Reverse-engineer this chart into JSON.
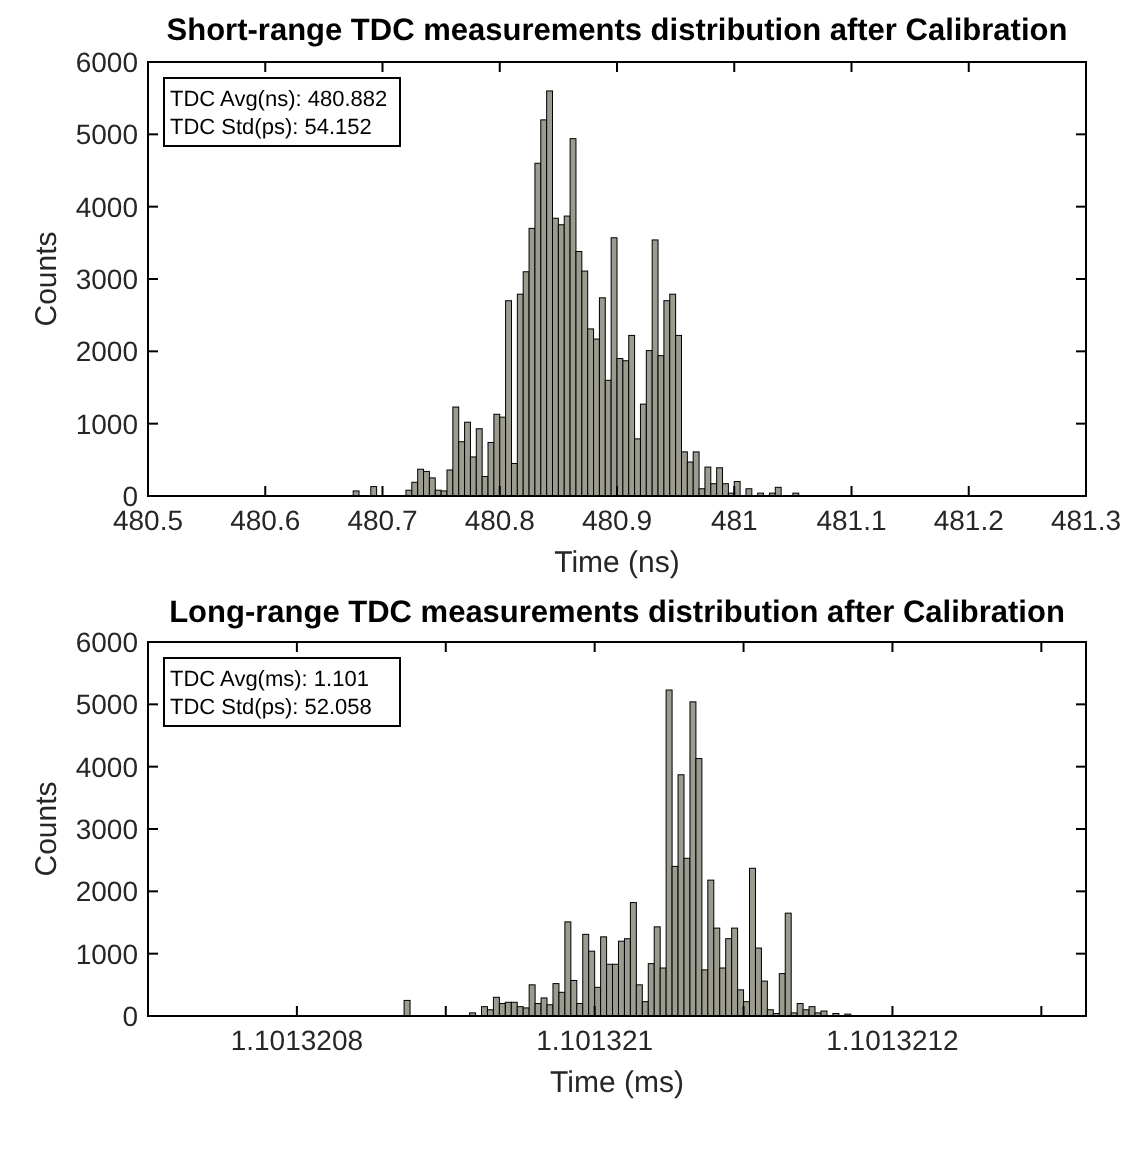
{
  "chart_data": [
    {
      "type": "histogram",
      "title": "Short-range TDC measurements distribution after Calibration",
      "xlabel": "Time (ns)",
      "ylabel": "Counts",
      "annotations": [
        "TDC Avg(ns): 480.882",
        "TDC Std(ps): 54.152"
      ],
      "color": "#9b9b8f",
      "bins": [
        480.675,
        480.68,
        480.685,
        480.69,
        480.695,
        480.7,
        480.705,
        480.71,
        480.715,
        480.72,
        480.725,
        480.73,
        480.735,
        480.74,
        480.745,
        480.75,
        480.755,
        480.76,
        480.765,
        480.77,
        480.775,
        480.78,
        480.785,
        480.79,
        480.795,
        480.8,
        480.805,
        480.81,
        480.815,
        480.82,
        480.825,
        480.83,
        480.835,
        480.84,
        480.845,
        480.85,
        480.855,
        480.86,
        480.865,
        480.87,
        480.875,
        480.88,
        480.885,
        480.89,
        480.895,
        480.9,
        480.905,
        480.91,
        480.915,
        480.92,
        480.925,
        480.93,
        480.935,
        480.94,
        480.945,
        480.95,
        480.955,
        480.96,
        480.965,
        480.97,
        480.975,
        480.98,
        480.985,
        480.99,
        480.995,
        481,
        481.005,
        481.01,
        481.015,
        481.02,
        481.025,
        481.03,
        481.035,
        481.04,
        481.045,
        481.05,
        481.055
      ],
      "values": [
        70,
        0,
        0,
        130,
        0,
        null,
        0,
        0,
        0,
        80,
        190,
        370,
        340,
        250,
        80,
        70,
        360,
        1230,
        750,
        1020,
        540,
        930,
        270,
        740,
        1130,
        1090,
        2700,
        450,
        2790,
        3100,
        3700,
        4600,
        5200,
        5600,
        3840,
        3750,
        3870,
        4940,
        3380,
        3110,
        2310,
        2170,
        2740,
        1600,
        3570,
        1900,
        1870,
        2220,
        790,
        1270,
        2010,
        3540,
        1940,
        2700,
        2790,
        2220,
        610,
        470,
        610,
        100,
        400,
        170,
        390,
        170,
        40,
        200,
        0,
        100,
        0,
        40,
        0,
        40,
        120,
        0,
        0,
        40
      ],
      "xlim": [
        480.5,
        481.3
      ],
      "xticks": [
        480.5,
        480.6,
        480.7,
        480.8,
        480.9,
        481,
        481.1,
        481.2,
        481.3
      ],
      "ylim": [
        0,
        6000
      ],
      "yticks": [
        0,
        1000,
        2000,
        3000,
        4000,
        5000,
        6000
      ]
    },
    {
      "type": "histogram",
      "title": "Long-range TDC measurements distribution after Calibration",
      "xlabel": "Time (ms)",
      "ylabel": "Counts",
      "annotations": [
        "TDC Avg(ms): 1.101",
        "TDC Std(ps): 52.058"
      ],
      "color": "#9b9b8f",
      "bins": [
        1.101320868,
        1.101320872,
        1.101320876,
        1.10132088,
        1.101320884,
        1.101320888,
        1.101320892,
        1.101320896,
        1.1013209,
        1.101320904,
        1.101320908,
        1.101320912,
        1.101320916,
        1.10132092,
        1.101320924,
        1.101320928,
        1.101320932,
        1.101320936,
        1.10132094,
        1.101320944,
        1.101320948,
        1.101320952,
        1.101320956,
        1.10132096,
        1.101320964,
        1.101320968,
        1.101320972,
        1.101320976,
        1.10132098,
        1.101320984,
        1.101320988,
        1.101320992,
        1.101320996,
        1.101321,
        1.101321004,
        1.101321008,
        1.101321012,
        1.101321016,
        1.10132102,
        1.101321024,
        1.101321028,
        1.101321032,
        1.101321036,
        1.10132104,
        1.101321044,
        1.101321048,
        1.101321052,
        1.101321056,
        1.10132106,
        1.101321064,
        1.101321068,
        1.101321072,
        1.101321076,
        1.10132108,
        1.101321084,
        1.101321088,
        1.101321092,
        1.101321096,
        1.1013211,
        1.101321104,
        1.101321108,
        1.101321112,
        1.101321116,
        1.10132112,
        1.101321124,
        1.101321128,
        1.101321132,
        1.101321136,
        1.10132114,
        1.101321144,
        1.101321148,
        1.101321152,
        1.101321156,
        1.10132116,
        1.101321164,
        1.101321168,
        1.101321172
      ],
      "values": [
        0,
        250,
        0,
        0,
        0,
        0,
        0,
        0,
        0,
        0,
        0,
        0,
        50,
        0,
        150,
        100,
        300,
        200,
        220,
        220,
        150,
        130,
        500,
        200,
        290,
        180,
        520,
        380,
        1510,
        570,
        200,
        1310,
        1040,
        460,
        1270,
        830,
        830,
        1200,
        1240,
        1820,
        500,
        230,
        840,
        1430,
        770,
        5230,
        2400,
        3870,
        2530,
        5040,
        4130,
        740,
        2180,
        1410,
        770,
        1240,
        1410,
        420,
        230,
        2370,
        1090,
        560,
        100,
        40,
        680,
        1650,
        50,
        200,
        100,
        150,
        50,
        80,
        0,
        40,
        0,
        30
      ],
      "xlim": [
        1.1013207,
        1.10132133
      ],
      "xticks": [
        1.1013208,
        {
          "value": 1.1013209,
          "label": null
        },
        1.101321,
        {
          "value": 1.1013211,
          "label": null
        },
        1.1013212,
        {
          "value": 1.1013213,
          "label": null
        }
      ],
      "ylim": [
        0,
        6000
      ],
      "yticks": [
        0,
        1000,
        2000,
        3000,
        4000,
        5000,
        6000
      ]
    }
  ]
}
